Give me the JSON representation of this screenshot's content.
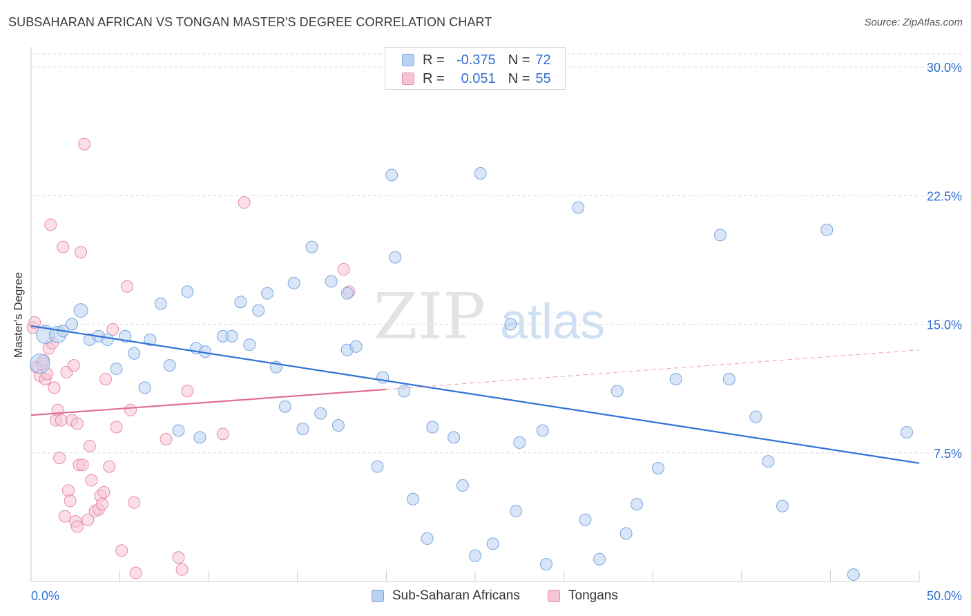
{
  "title": "SUBSAHARAN AFRICAN VS TONGAN MASTER'S DEGREE CORRELATION CHART",
  "source": "Source: ZipAtlas.com",
  "watermark": {
    "zip": "ZIP",
    "atlas": "atlas"
  },
  "legend_top": {
    "rows": [
      {
        "r_label": "R =",
        "r_value": "-0.375",
        "n_label": "N =",
        "n_value": "72"
      },
      {
        "r_label": "R =",
        "r_value": "0.051",
        "n_label": "N =",
        "n_value": "55"
      }
    ]
  },
  "legend_bottom": [
    "Sub-Saharan Africans",
    "Tongans"
  ],
  "colors": {
    "blue_fill": "#b9d2f1",
    "blue_stroke": "#7aa6de",
    "blue_line": "#2f72d6",
    "pink_fill": "#f7c4d3",
    "pink_stroke": "#e88aa8",
    "pink_line": "#e0708f",
    "axis_text": "#2f6fd0",
    "grid": "#d9d9d9"
  },
  "chart_data": {
    "type": "scatter",
    "title": "SUBSAHARAN AFRICAN VS TONGAN MASTER'S DEGREE CORRELATION CHART",
    "xlabel": "",
    "ylabel": "Master's Degree",
    "xlim": [
      0,
      50
    ],
    "ylim": [
      0,
      30
    ],
    "x_tick_labels": [
      "0.0%",
      "50.0%"
    ],
    "y_ticks": [
      7.5,
      15.0,
      22.5,
      30.0
    ],
    "y_tick_labels": [
      "7.5%",
      "15.0%",
      "22.5%",
      "30.0%"
    ],
    "grid": "horizontal dashed",
    "legend_position": "top-center",
    "series": [
      {
        "name": "Sub-Saharan Africans",
        "color": "#b9d2f1",
        "R": -0.375,
        "N": 72,
        "trend": {
          "x": [
            0,
            50
          ],
          "y": [
            14.9,
            6.9
          ],
          "dashed_extension": false
        },
        "points": [
          [
            0.5,
            12.7
          ],
          [
            0.8,
            14.4
          ],
          [
            1.5,
            14.4
          ],
          [
            1.8,
            14.6
          ],
          [
            2.3,
            15.0
          ],
          [
            2.8,
            15.8
          ],
          [
            3.3,
            14.1
          ],
          [
            3.8,
            14.3
          ],
          [
            4.3,
            14.1
          ],
          [
            4.8,
            12.4
          ],
          [
            5.3,
            14.3
          ],
          [
            5.8,
            13.3
          ],
          [
            6.4,
            11.3
          ],
          [
            6.7,
            14.1
          ],
          [
            7.3,
            16.2
          ],
          [
            7.8,
            12.6
          ],
          [
            8.3,
            8.8
          ],
          [
            8.8,
            16.9
          ],
          [
            9.5,
            8.4
          ],
          [
            9.3,
            13.6
          ],
          [
            9.8,
            13.4
          ],
          [
            10.8,
            14.3
          ],
          [
            11.3,
            14.3
          ],
          [
            11.8,
            16.3
          ],
          [
            12.3,
            13.8
          ],
          [
            12.8,
            15.8
          ],
          [
            13.3,
            16.8
          ],
          [
            13.8,
            12.5
          ],
          [
            14.3,
            10.2
          ],
          [
            14.8,
            17.4
          ],
          [
            15.3,
            8.9
          ],
          [
            15.8,
            19.5
          ],
          [
            16.3,
            9.8
          ],
          [
            17.3,
            9.1
          ],
          [
            16.9,
            17.5
          ],
          [
            17.8,
            13.5
          ],
          [
            17.8,
            16.8
          ],
          [
            18.3,
            13.7
          ],
          [
            19.5,
            6.7
          ],
          [
            19.8,
            11.9
          ],
          [
            20.3,
            23.7
          ],
          [
            20.5,
            18.9
          ],
          [
            21.0,
            11.1
          ],
          [
            21.5,
            4.8
          ],
          [
            22.3,
            2.5
          ],
          [
            22.6,
            9.0
          ],
          [
            23.8,
            8.4
          ],
          [
            24.3,
            5.6
          ],
          [
            25.0,
            1.5
          ],
          [
            25.3,
            23.8
          ],
          [
            26.0,
            2.2
          ],
          [
            27.3,
            4.1
          ],
          [
            27.5,
            8.1
          ],
          [
            28.8,
            8.8
          ],
          [
            29.0,
            1.0
          ],
          [
            30.8,
            21.8
          ],
          [
            31.2,
            3.6
          ],
          [
            32.0,
            1.3
          ],
          [
            33.0,
            11.1
          ],
          [
            33.5,
            2.8
          ],
          [
            34.1,
            4.5
          ],
          [
            35.3,
            6.6
          ],
          [
            36.3,
            11.8
          ],
          [
            38.8,
            20.2
          ],
          [
            39.3,
            11.8
          ],
          [
            40.8,
            9.6
          ],
          [
            41.5,
            7.0
          ],
          [
            42.3,
            4.4
          ],
          [
            44.8,
            20.5
          ],
          [
            46.3,
            0.4
          ],
          [
            49.3,
            8.7
          ],
          [
            27.0,
            15.0
          ]
        ]
      },
      {
        "name": "Tongans",
        "color": "#f7c4d3",
        "R": 0.051,
        "N": 55,
        "trend": {
          "x": [
            0,
            20
          ],
          "y": [
            9.7,
            11.2
          ],
          "dashed_extension_to_x": 50,
          "dashed_extension_y": 13.5
        },
        "points": [
          [
            0.1,
            14.8
          ],
          [
            0.2,
            15.1
          ],
          [
            0.3,
            12.5
          ],
          [
            0.5,
            12.0
          ],
          [
            0.6,
            12.7
          ],
          [
            0.8,
            11.8
          ],
          [
            0.9,
            12.1
          ],
          [
            1.0,
            13.6
          ],
          [
            1.2,
            13.9
          ],
          [
            1.3,
            11.3
          ],
          [
            1.4,
            9.4
          ],
          [
            1.5,
            10.0
          ],
          [
            1.6,
            7.2
          ],
          [
            1.7,
            9.4
          ],
          [
            1.8,
            19.5
          ],
          [
            1.9,
            3.8
          ],
          [
            2.0,
            12.2
          ],
          [
            2.1,
            5.3
          ],
          [
            2.2,
            4.7
          ],
          [
            2.3,
            9.4
          ],
          [
            2.4,
            12.6
          ],
          [
            2.5,
            3.5
          ],
          [
            2.6,
            3.2
          ],
          [
            2.7,
            6.8
          ],
          [
            2.8,
            19.2
          ],
          [
            2.9,
            6.8
          ],
          [
            3.0,
            25.5
          ],
          [
            3.2,
            3.6
          ],
          [
            3.3,
            7.9
          ],
          [
            3.4,
            5.9
          ],
          [
            3.6,
            4.1
          ],
          [
            3.8,
            4.2
          ],
          [
            3.9,
            5.0
          ],
          [
            4.0,
            4.5
          ],
          [
            4.1,
            5.2
          ],
          [
            4.2,
            11.8
          ],
          [
            4.4,
            6.7
          ],
          [
            4.6,
            14.7
          ],
          [
            4.8,
            9.0
          ],
          [
            5.1,
            1.8
          ],
          [
            5.4,
            17.2
          ],
          [
            5.6,
            10.0
          ],
          [
            5.8,
            4.6
          ],
          [
            5.9,
            0.5
          ],
          [
            7.6,
            8.3
          ],
          [
            8.3,
            1.4
          ],
          [
            8.5,
            0.7
          ],
          [
            8.8,
            11.1
          ],
          [
            10.8,
            8.6
          ],
          [
            12.0,
            22.1
          ],
          [
            17.6,
            18.2
          ],
          [
            17.9,
            16.9
          ],
          [
            1.1,
            20.8
          ],
          [
            0.7,
            12.9
          ],
          [
            2.6,
            9.2
          ]
        ]
      }
    ]
  }
}
